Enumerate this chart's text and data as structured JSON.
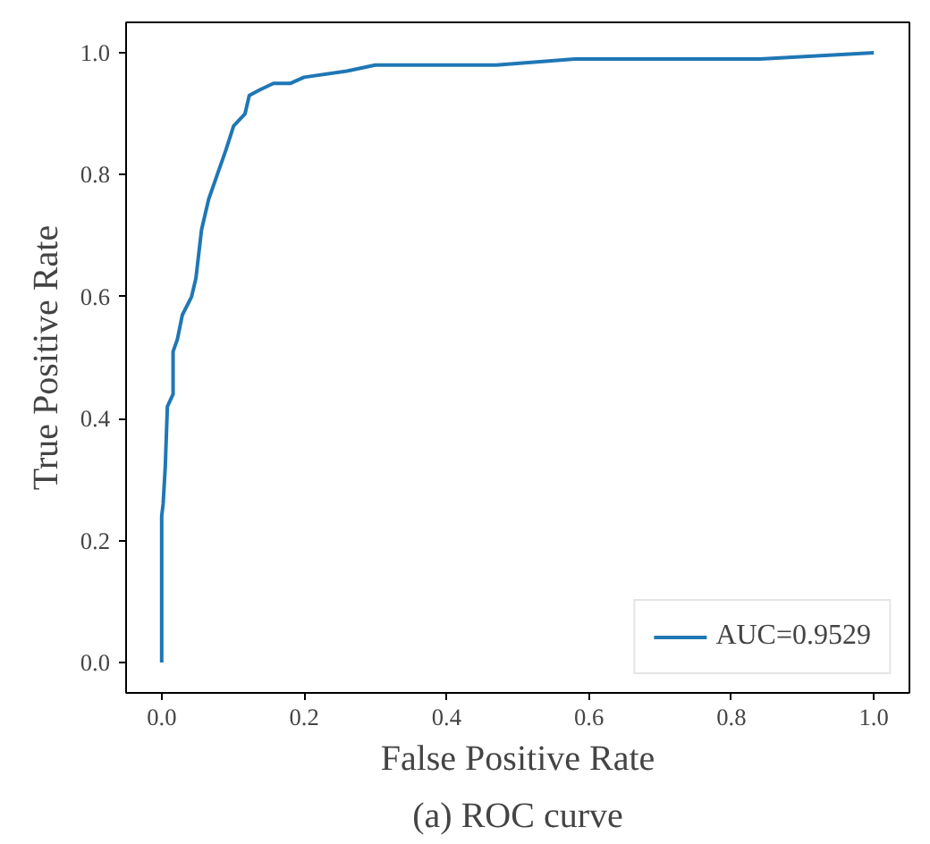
{
  "chart_data": {
    "type": "line",
    "title": "(a) ROC curve",
    "xlabel": "False Positive Rate",
    "ylabel": "True Positive Rate",
    "xlim": [
      -0.05,
      1.05
    ],
    "ylim": [
      -0.05,
      1.05
    ],
    "xticks": [
      {
        "value": 0,
        "label": "0.0"
      },
      0.2,
      0.4,
      0.6,
      0.8,
      {
        "value": 1,
        "label": "1.0"
      }
    ],
    "yticks": [
      {
        "value": 0,
        "label": "0.0"
      },
      0.2,
      0.4,
      0.6,
      0.8,
      {
        "value": 1,
        "label": "1.0"
      }
    ],
    "grid": false,
    "legend": "bottom right",
    "line_style": "solid",
    "series": [
      {
        "name": "AUC=0.9529",
        "color": "#1f77b4",
        "x": [
          0,
          0,
          0.002,
          0.005,
          0.008,
          0.016,
          0.016,
          0.022,
          0.029,
          0.042,
          0.048,
          0.051,
          0.056,
          0.066,
          0.078,
          0.09,
          0.101,
          0.117,
          0.123,
          0.139,
          0.157,
          0.181,
          0.2,
          0.26,
          0.3,
          0.44,
          0.47,
          0.58,
          0.84,
          1.0
        ],
        "values": [
          0,
          0.24,
          0.26,
          0.32,
          0.42,
          0.44,
          0.51,
          0.53,
          0.57,
          0.6,
          0.63,
          0.66,
          0.71,
          0.76,
          0.8,
          0.84,
          0.88,
          0.9,
          0.93,
          0.94,
          0.95,
          0.95,
          0.96,
          0.97,
          0.98,
          0.98,
          0.98,
          0.99,
          0.99,
          1.0
        ]
      }
    ]
  }
}
